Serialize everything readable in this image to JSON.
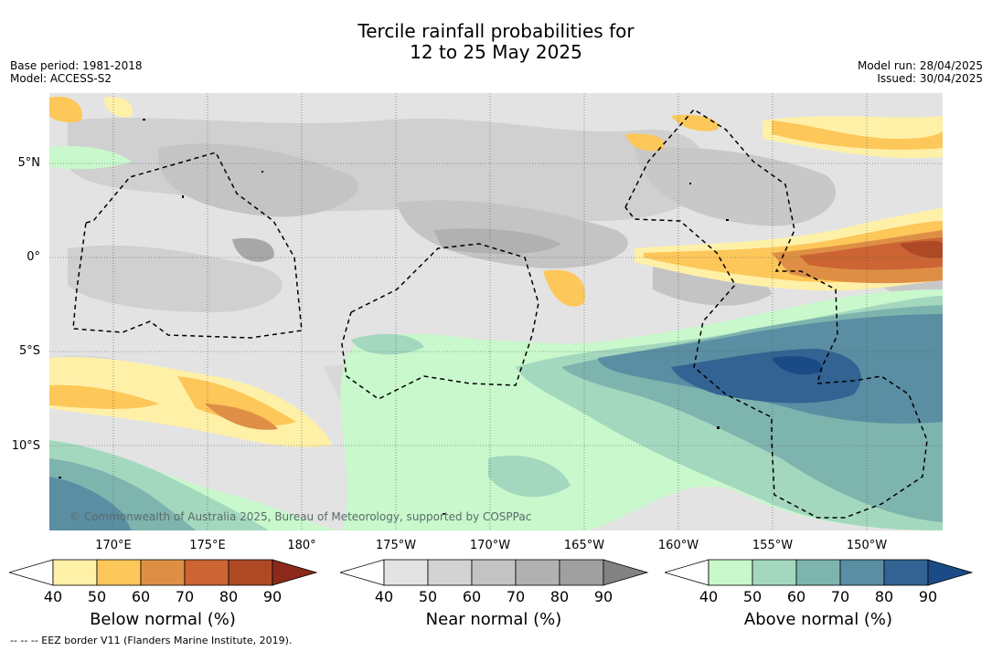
{
  "title": {
    "line1": "Tercile rainfall probabilities for",
    "line2": "12 to 25 May 2025"
  },
  "meta": {
    "base_period": "Base period: 1981-2018",
    "model": "Model: ACCESS-S2",
    "model_run": "Model run: 28/04/2025",
    "issued": "Issued: 30/04/2025"
  },
  "axes": {
    "lat_labels": [
      "5°N",
      "0°",
      "5°S",
      "10°S"
    ],
    "lon_labels": [
      "170°E",
      "175°E",
      "180°",
      "175°W",
      "170°W",
      "165°W",
      "160°W",
      "155°W",
      "150°W"
    ]
  },
  "copyright": "© Commonwealth of Australia 2025, Bureau of Meteorology, supported by COSPPac",
  "legends": {
    "below": {
      "title": "Below normal (%)",
      "ticks": [
        "40",
        "50",
        "60",
        "70",
        "80",
        "90"
      ],
      "colors": [
        "#fff0a8",
        "#fdc75a",
        "#de8f45",
        "#cc6433",
        "#ad4925",
        "#8b2a1a"
      ]
    },
    "near": {
      "title": "Near normal (%)",
      "ticks": [
        "40",
        "50",
        "60",
        "70",
        "80",
        "90"
      ],
      "colors": [
        "#e3e3e3",
        "#d3d3d3",
        "#c3c3c3",
        "#b1b1b1",
        "#a0a0a0",
        "#828282"
      ]
    },
    "above": {
      "title": "Above normal (%)",
      "ticks": [
        "40",
        "50",
        "60",
        "70",
        "80",
        "90"
      ],
      "colors": [
        "#c8f8cc",
        "#a4d8be",
        "#7eb4ae",
        "#5a8ea3",
        "#326392",
        "#1a4b86"
      ]
    }
  },
  "footer": "--  --  -- EEZ border V11 (Flanders Marine Institute, 2019)."
}
